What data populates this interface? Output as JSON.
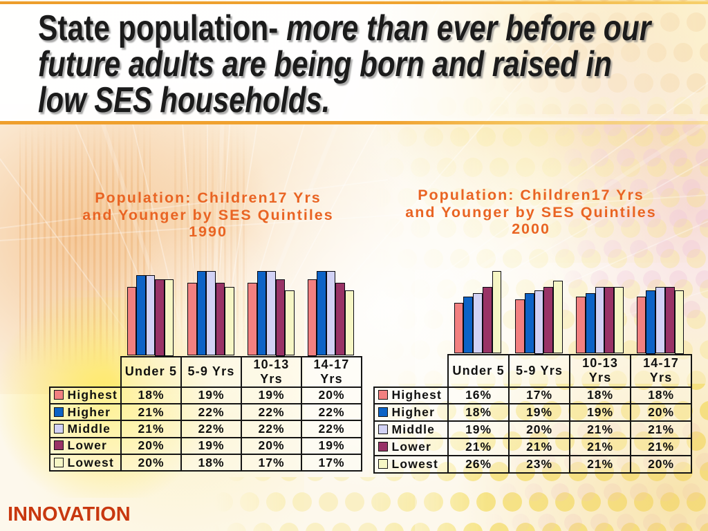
{
  "slide_title": {
    "full_text": "State population- more than ever before our future adults are being born and raised in low SES households.",
    "lines": [
      {
        "regular": "State population-",
        "italic": " more than ever before our"
      },
      {
        "regular": "",
        "italic": "future adults are being born and raised in"
      },
      {
        "regular": "",
        "italic": "low SES households."
      }
    ]
  },
  "footer": {
    "logo_text": "INNOVATION"
  },
  "colors": {
    "accent_orange_rule": "#F0A330",
    "chart_title_orange": "#E96423",
    "footer_logo_red": "#C8380F",
    "series": {
      "Highest": "#F28080",
      "Higher": "#0D63C6",
      "Middle": "#D2D2F5",
      "Lower": "#993366",
      "Lowest": "#F6F6C5"
    }
  },
  "chart_data": [
    {
      "type": "bar",
      "title": "Population: Children17 Yrs and Younger by SES Quintiles 1990",
      "title_lines": [
        "Population: Children17 Yrs",
        "and Younger by SES Quintiles",
        "1990"
      ],
      "categories": [
        "Under 5",
        "5-9 Yrs",
        "10-13 Yrs",
        "14-17 Yrs"
      ],
      "series": [
        {
          "name": "Highest",
          "values": [
            18,
            19,
            19,
            20
          ]
        },
        {
          "name": "Higher",
          "values": [
            21,
            22,
            22,
            22
          ]
        },
        {
          "name": "Middle",
          "values": [
            21,
            22,
            22,
            22
          ]
        },
        {
          "name": "Lower",
          "values": [
            20,
            19,
            20,
            19
          ]
        },
        {
          "name": "Lowest",
          "values": [
            20,
            18,
            17,
            17
          ]
        }
      ],
      "value_format": "percent",
      "legend_position": "data-table-left-column",
      "gridlines": false,
      "y_axis_visible": false
    },
    {
      "type": "bar",
      "title": "Population: Children17 Yrs and Younger by SES Quintiles 2000",
      "title_lines": [
        "Population: Children17 Yrs",
        "and Younger by SES Quintiles",
        "2000"
      ],
      "categories": [
        "Under 5",
        "5-9 Yrs",
        "10-13 Yrs",
        "14-17 Yrs"
      ],
      "series": [
        {
          "name": "Highest",
          "values": [
            16,
            17,
            18,
            18
          ]
        },
        {
          "name": "Higher",
          "values": [
            18,
            19,
            19,
            20
          ]
        },
        {
          "name": "Middle",
          "values": [
            19,
            20,
            21,
            21
          ]
        },
        {
          "name": "Lower",
          "values": [
            21,
            21,
            21,
            21
          ]
        },
        {
          "name": "Lowest",
          "values": [
            26,
            23,
            21,
            20
          ]
        }
      ],
      "value_format": "percent",
      "legend_position": "data-table-left-column",
      "gridlines": false,
      "y_axis_visible": false
    }
  ]
}
